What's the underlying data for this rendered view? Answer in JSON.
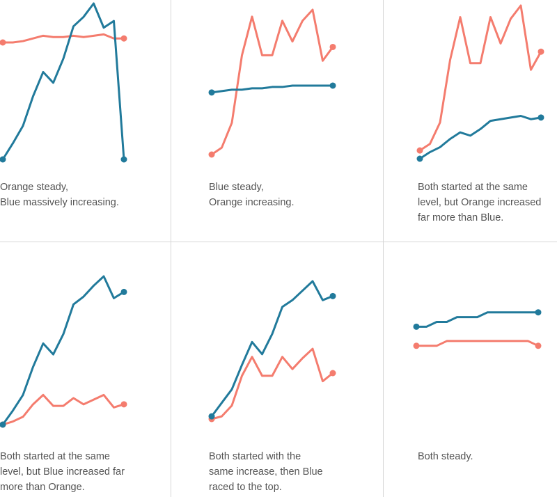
{
  "colors": {
    "blue": "#217a9b",
    "orange": "#f47c6e",
    "divider": "#d6d6d6",
    "text": "#555555"
  },
  "chart_data": [
    {
      "type": "line",
      "caption": "Orange steady,\nBlue massively increasing.",
      "x": [
        0,
        1,
        2,
        3,
        4,
        5,
        6,
        7,
        8,
        9,
        10,
        11,
        12
      ],
      "ylim": [
        0,
        100
      ],
      "series": [
        {
          "name": "Blue",
          "values": [
            0,
            12,
            25,
            47,
            65,
            57,
            75,
            99,
            106,
            116,
            98,
            103,
            0
          ]
        },
        {
          "name": "Orange",
          "values": [
            87,
            87,
            88,
            90,
            92,
            91,
            91,
            92,
            91,
            92,
            93,
            90,
            90
          ]
        }
      ]
    },
    {
      "type": "line",
      "caption": "Blue steady,\nOrange increasing.",
      "x": [
        0,
        1,
        2,
        3,
        4,
        5,
        6,
        7,
        8,
        9,
        10,
        11,
        12
      ],
      "ylim": [
        0,
        100
      ],
      "series": [
        {
          "name": "Blue",
          "values": [
            45,
            46,
            47,
            47,
            48,
            48,
            49,
            49,
            50,
            50,
            50,
            50,
            50
          ]
        },
        {
          "name": "Orange",
          "values": [
            0,
            5,
            23,
            72,
            100,
            72,
            72,
            97,
            82,
            97,
            105,
            68,
            78
          ]
        }
      ]
    },
    {
      "type": "line",
      "caption": "Both started at the same\nlevel, but Orange increased\nfar more than Blue.",
      "x": [
        0,
        1,
        2,
        3,
        4,
        5,
        6,
        7,
        8,
        9,
        10,
        11,
        12
      ],
      "ylim": [
        0,
        100
      ],
      "series": [
        {
          "name": "Blue",
          "values": [
            0,
            4,
            7,
            12,
            16,
            14,
            18,
            23,
            24,
            25,
            26,
            24,
            25
          ]
        },
        {
          "name": "Orange",
          "values": [
            5,
            9,
            22,
            60,
            86,
            58,
            58,
            86,
            70,
            85,
            93,
            54,
            65
          ]
        }
      ]
    },
    {
      "type": "line",
      "caption": "Both started at the same\nlevel, but Blue increased far\nmore than Orange.",
      "x": [
        0,
        1,
        2,
        3,
        4,
        5,
        6,
        7,
        8,
        9,
        10,
        11,
        12
      ],
      "ylim": [
        0,
        100
      ],
      "series": [
        {
          "name": "Blue",
          "values": [
            0,
            9,
            19,
            37,
            52,
            45,
            58,
            77,
            82,
            89,
            95,
            81,
            85
          ]
        },
        {
          "name": "Orange",
          "values": [
            0,
            2,
            5,
            13,
            19,
            12,
            12,
            17,
            13,
            16,
            19,
            11,
            13
          ]
        }
      ]
    },
    {
      "type": "line",
      "caption": "Both started with the\nsame increase, then Blue\nraced to the top.",
      "x": [
        0,
        1,
        2,
        3,
        4,
        5,
        6,
        7,
        8,
        9,
        10,
        11,
        12
      ],
      "ylim": [
        0,
        100
      ],
      "series": [
        {
          "name": "Blue",
          "values": [
            0,
            10,
            20,
            38,
            55,
            46,
            61,
            81,
            86,
            93,
            100,
            86,
            89
          ]
        },
        {
          "name": "Orange",
          "values": [
            -2,
            0,
            8,
            30,
            44,
            30,
            30,
            44,
            35,
            43,
            50,
            26,
            32
          ]
        }
      ]
    },
    {
      "type": "line",
      "caption": "Both steady.",
      "x": [
        0,
        1,
        2,
        3,
        4,
        5,
        6,
        7,
        8,
        9,
        10,
        11,
        12
      ],
      "ylim": [
        0,
        100
      ],
      "series": [
        {
          "name": "Blue",
          "values": [
            50,
            50,
            51,
            51,
            52,
            52,
            52,
            53,
            53,
            53,
            53,
            53,
            53
          ]
        },
        {
          "name": "Orange",
          "values": [
            46,
            46,
            46,
            47,
            47,
            47,
            47,
            47,
            47,
            47,
            47,
            47,
            46
          ]
        }
      ]
    }
  ]
}
